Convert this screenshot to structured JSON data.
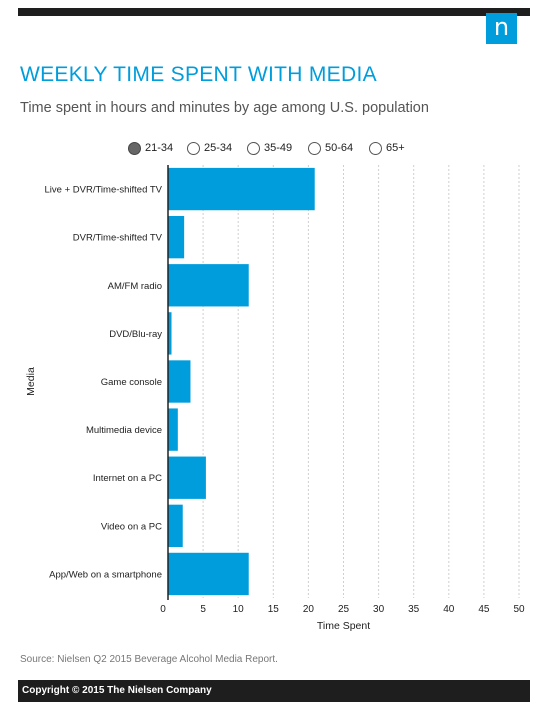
{
  "header": {
    "logo_letter": "n",
    "title": "WEEKLY TIME SPENT WITH MEDIA",
    "subtitle": "Time spent in hours and minutes by age among U.S. population"
  },
  "legend": {
    "options": [
      {
        "label": "21-34",
        "selected": true
      },
      {
        "label": "25-34",
        "selected": false
      },
      {
        "label": "35-49",
        "selected": false
      },
      {
        "label": "50-64",
        "selected": false
      },
      {
        "label": "65+",
        "selected": false
      }
    ]
  },
  "colors": {
    "bar": "#009ddc",
    "accent": "#009ddc",
    "dark": "#1e1e1e"
  },
  "chart_data": {
    "type": "bar",
    "orientation": "horizontal",
    "categories": [
      "Live + DVR/Time-shifted TV",
      "DVR/Time-shifted TV",
      "AM/FM radio",
      "DVD/Blu-ray",
      "Game console",
      "Multimedia device",
      "Internet on a PC",
      "Video on a PC",
      "App/Web on a smartphone"
    ],
    "values": [
      20.9,
      2.3,
      11.5,
      0.5,
      3.2,
      1.4,
      5.4,
      2.1,
      11.5
    ],
    "xlabel": "Time Spent",
    "ylabel": "Media",
    "xlim": [
      0,
      50
    ],
    "xticks": [
      0,
      5,
      10,
      15,
      20,
      25,
      30,
      35,
      40,
      45,
      50
    ],
    "grid": "vertical-dashed"
  },
  "footer": {
    "source": "Source: Nielsen Q2 2015 Beverage Alcohol Media Report.",
    "copyright": "Copyright © 2015 The Nielsen Company"
  }
}
